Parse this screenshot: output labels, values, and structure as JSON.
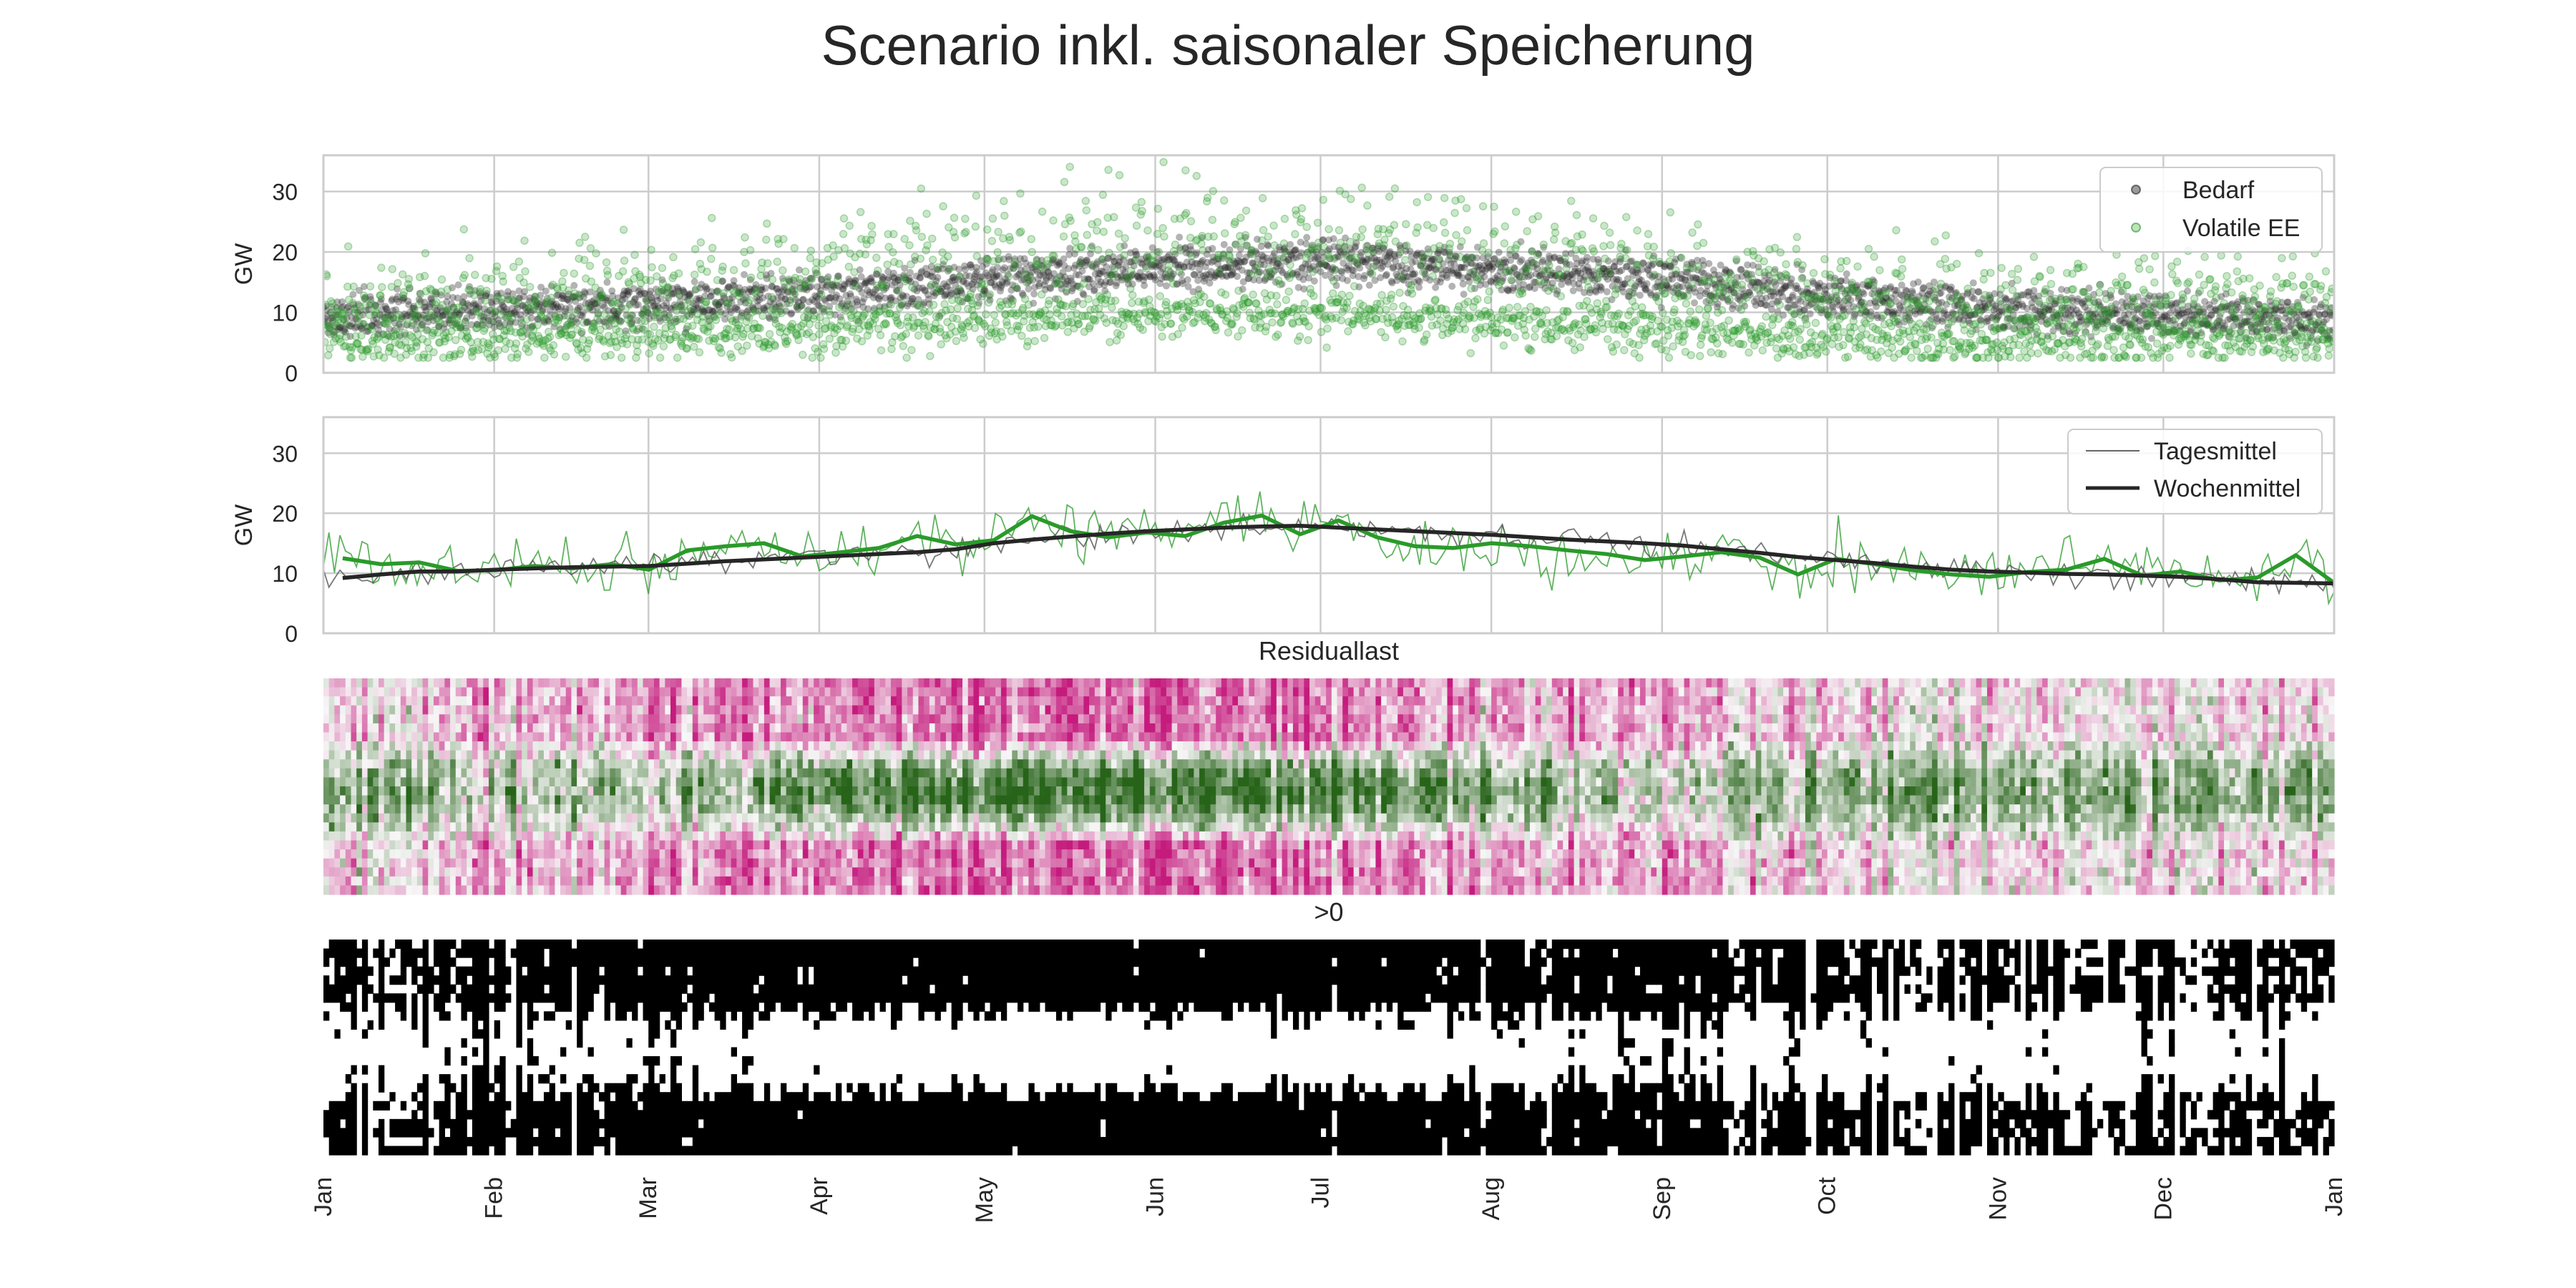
{
  "figure_title": "Scenario inkl. saisonaler Speicherung",
  "colors": {
    "demand": "#262626",
    "renewables": "#2a9a2a",
    "grid": "#cccccc",
    "axes_edge": "#cccccc",
    "residual_negative": "#2f7d12",
    "residual_positive": "#c8177a",
    "binary_on": "#000000",
    "binary_off": "#ffffff"
  },
  "chart_data": [
    {
      "type": "scatter",
      "name": "hourly-scatter",
      "ylabel": "GW",
      "ylim": [
        0,
        36
      ],
      "yticks": [
        0,
        10,
        20,
        30
      ],
      "grid": true,
      "legend_position": "top-right",
      "legend": [
        {
          "label": "Bedarf",
          "color": "#262626",
          "marker": "circle"
        },
        {
          "label": "Volatile EE",
          "color": "#2a9a2a",
          "marker": "circle"
        }
      ],
      "x_range_days": [
        0,
        365
      ],
      "series_profiles": {
        "demand_monthly_mean_gw": [
          9.0,
          10.5,
          11.5,
          13.0,
          15.5,
          17.5,
          18.5,
          17.0,
          15.5,
          12.5,
          10.5,
          9.5,
          8.5
        ],
        "renewables_monthly_mean_gw": [
          10.0,
          10.5,
          12.0,
          13.5,
          16.0,
          18.0,
          17.0,
          15.0,
          13.0,
          11.0,
          9.5,
          10.0,
          10.5
        ],
        "renewables_max_gw": 36
      }
    },
    {
      "type": "line",
      "name": "averages",
      "ylabel": "GW",
      "ylim": [
        0,
        36
      ],
      "yticks": [
        0,
        10,
        20,
        30
      ],
      "grid": true,
      "legend_position": "top-right",
      "legend": [
        {
          "label": "Tagesmittel",
          "color": "#666666",
          "style": "thin"
        },
        {
          "label": "Wochenmittel",
          "color": "#262626",
          "style": "thick"
        }
      ],
      "series": [
        {
          "values": [
            9.2,
            9.8,
            10.3,
            10.3,
            10.6,
            10.8,
            11.0,
            11.1,
            11.2,
            11.6,
            12.0,
            12.3,
            12.6,
            12.9,
            13.2,
            13.5,
            14.0,
            15.0,
            15.6,
            16.1,
            16.6,
            17.0,
            17.3,
            17.6,
            17.8,
            17.9,
            17.6,
            17.3,
            17.0,
            16.7,
            16.4,
            16.0,
            15.6,
            15.3,
            15.0,
            14.6,
            14.0,
            13.4,
            12.7,
            12.2,
            11.7,
            11.1,
            10.6,
            10.3,
            10.1,
            9.9,
            9.8,
            9.6,
            9.4,
            9.0,
            8.5,
            8.4,
            8.3
          ]
        },
        {
          "values": [
            12.5,
            11.5,
            11.8,
            10.4,
            10.5,
            11.2,
            10.8,
            11.5,
            10.6,
            13.8,
            14.5,
            15.0,
            12.8,
            13.5,
            14.2,
            16.2,
            14.8,
            15.5,
            19.5,
            17.0,
            16.0,
            16.8,
            16.2,
            18.4,
            19.6,
            16.5,
            18.8,
            16.0,
            14.5,
            14.2,
            15.0,
            14.5,
            13.8,
            13.2,
            12.2,
            12.8,
            13.5,
            12.6,
            9.8,
            12.4,
            11.5,
            10.5,
            9.8,
            9.4,
            10.2,
            10.6,
            12.4,
            9.6,
            10.3,
            8.8,
            9.3,
            13.0,
            8.4
          ]
        }
      ]
    },
    {
      "type": "heatmap",
      "name": "residuallast",
      "title": "Residuallast",
      "rows": 24,
      "columns": 365,
      "colormap": "PiYG",
      "value_range": [
        -1,
        1
      ]
    },
    {
      "type": "heatmap",
      "name": "positive-mask",
      "title": ">0",
      "rows": 24,
      "columns": 365,
      "colormap": "binary"
    }
  ],
  "x_axis": {
    "tick_labels": [
      "Jan",
      "Feb",
      "Mar",
      "Apr",
      "May",
      "Jun",
      "Jul",
      "Aug",
      "Sep",
      "Oct",
      "Nov",
      "Dec",
      "Jan"
    ],
    "tick_days": [
      0,
      31,
      59,
      90,
      120,
      151,
      181,
      212,
      243,
      273,
      304,
      334,
      365
    ]
  }
}
